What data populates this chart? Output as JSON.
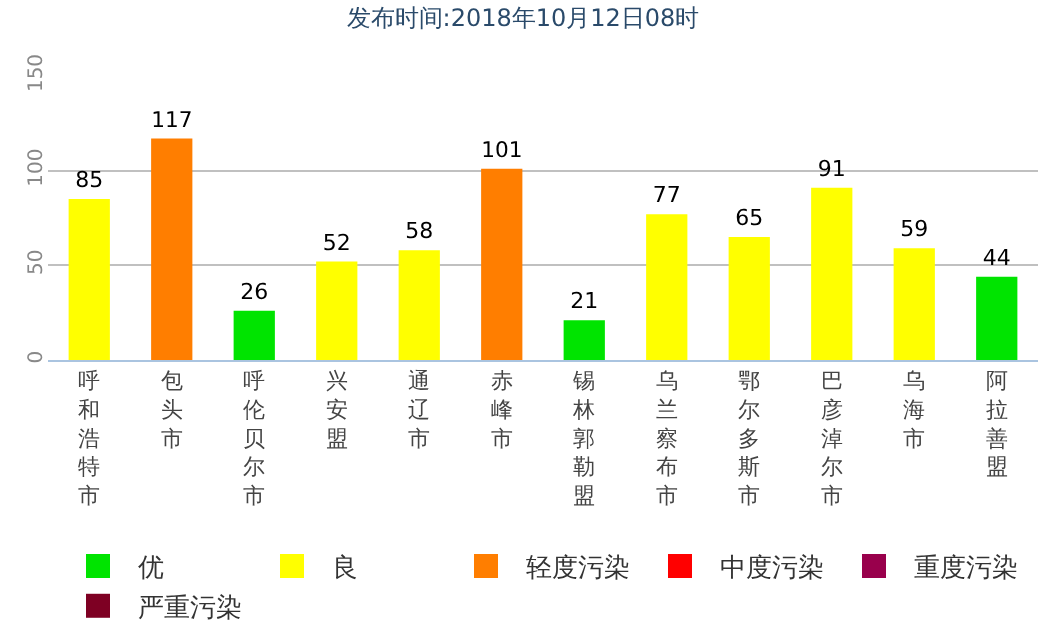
{
  "chart_data": {
    "type": "bar",
    "title": "发布时间:2018年10月12日08时",
    "categories": [
      "呼和浩特市",
      "包头市",
      "呼伦贝尔市",
      "兴安盟",
      "通辽市",
      "赤峰市",
      "锡林郭勒盟",
      "乌兰察布市",
      "鄂尔多斯市",
      "巴彦淖尔市",
      "乌海市",
      "阿拉善盟"
    ],
    "series": [
      {
        "name": "优",
        "color": "#00e400",
        "values": [
          null,
          null,
          26,
          null,
          null,
          null,
          21,
          null,
          null,
          null,
          null,
          44
        ]
      },
      {
        "name": "良",
        "color": "#ffff00",
        "values": [
          85,
          null,
          null,
          52,
          58,
          null,
          null,
          77,
          65,
          91,
          59,
          null
        ]
      },
      {
        "name": "轻度污染",
        "color": "#ff7e00",
        "values": [
          null,
          117,
          null,
          null,
          null,
          101,
          null,
          null,
          null,
          null,
          null,
          null
        ]
      },
      {
        "name": "中度污染",
        "color": "#ff0000",
        "values": [
          null,
          null,
          null,
          null,
          null,
          null,
          null,
          null,
          null,
          null,
          null,
          null
        ]
      },
      {
        "name": "重度污染",
        "color": "#99004c",
        "values": [
          null,
          null,
          null,
          null,
          null,
          null,
          null,
          null,
          null,
          null,
          null,
          null
        ]
      },
      {
        "name": "严重污染",
        "color": "#7e0023",
        "values": [
          null,
          null,
          null,
          null,
          null,
          null,
          null,
          null,
          null,
          null,
          null,
          null
        ]
      }
    ],
    "ylim": [
      0,
      150
    ],
    "yticks": [
      0,
      50,
      100,
      150
    ],
    "grid": "y",
    "data_labels": true,
    "legend": "bottom"
  }
}
